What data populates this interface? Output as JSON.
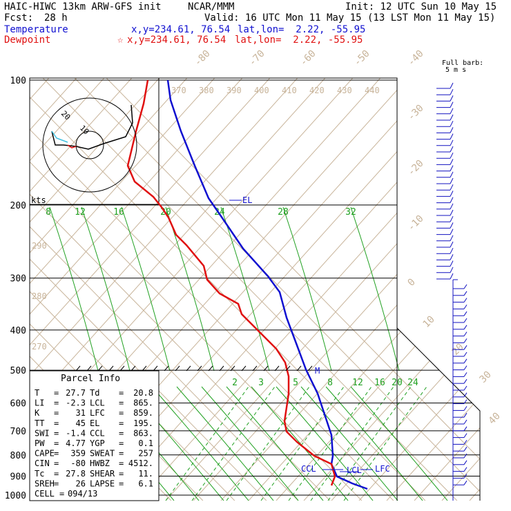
{
  "header": {
    "model": "HAIC-HIWC 13km ARW-GFS init",
    "org": "NCAR/MMM",
    "init": "Init: 12 UTC Sun 10 May 15",
    "fcst_label": "Fcst:",
    "fcst_value": "28 h",
    "valid": "Valid: 16 UTC Mon 11 May 15 (13 LST Mon 11 May 15)",
    "temperature_label": "Temperature",
    "dewpoint_label": "Dewpoint",
    "temp_xy": "x,y=234.61, 76.54",
    "temp_latlon": "lat,lon=  2.22, -55.95",
    "dew_xy": "x,y=234.61, 76.54",
    "dew_latlon": "lat,lon=  2.22, -55.95",
    "barb_title": "Full barb:",
    "barb_unit": "5 m s"
  },
  "colors": {
    "temperature": "#1010d0",
    "dewpoint": "#e01010",
    "isotherm": "#c8b49a",
    "mixing_ratio": "#20a020",
    "wind": "#1010c0",
    "hodo_black": "#000000",
    "hodo_cyan": "#40c0e0"
  },
  "chart_data": {
    "type": "line",
    "pressure_levels": [
      100,
      200,
      300,
      400,
      500,
      600,
      700,
      800,
      900,
      1000
    ],
    "pressure_labels": [
      "100",
      "200",
      "300",
      "400",
      "500",
      "600",
      "700",
      "800",
      "900",
      "1000"
    ],
    "isotherm_labels": [
      "-80",
      "-70",
      "-60",
      "-50",
      "-40",
      "-30",
      "-20",
      "-10",
      "0",
      "10",
      "20",
      "30",
      "40"
    ],
    "theta_labels_top": [
      "370",
      "380",
      "390",
      "400",
      "410",
      "420",
      "430",
      "440"
    ],
    "theta_labels_left": [
      "290",
      "280",
      "270"
    ],
    "mixing_ratio_upper": [
      "8",
      "12",
      "16",
      "20",
      "24",
      "28",
      "32"
    ],
    "mixing_ratio_lower": [
      "2",
      "3",
      "5",
      "8",
      "12",
      "16",
      "20",
      "24"
    ],
    "series": [
      {
        "name": "Temperature",
        "points": [
          [
            -55,
            105
          ],
          [
            -54,
            140
          ],
          [
            -50,
            200
          ],
          [
            -43,
            300
          ],
          [
            -24,
            420
          ],
          [
            -15,
            490
          ],
          [
            -8,
            560
          ],
          [
            -1,
            700
          ],
          [
            4,
            800
          ],
          [
            12,
            880
          ],
          [
            20,
            960
          ]
        ]
      },
      {
        "name": "Dewpoint",
        "points": [
          [
            -100,
            105
          ],
          [
            -98,
            140
          ],
          [
            -95,
            165
          ],
          [
            -82,
            200
          ],
          [
            -75,
            250
          ],
          [
            -72,
            300
          ],
          [
            -60,
            350
          ],
          [
            -52,
            400
          ],
          [
            -20,
            520
          ],
          [
            -10,
            560
          ],
          [
            -8,
            600
          ],
          [
            -12,
            700
          ],
          [
            2,
            790
          ],
          [
            12,
            880
          ],
          [
            12,
            920
          ]
        ]
      }
    ],
    "annotations": [
      "EL",
      "M",
      "CCL",
      "LCL",
      "LFC"
    ],
    "hodograph": {
      "ring_labels": [
        "20",
        "10"
      ],
      "units": "kts"
    },
    "parcel_info": {
      "title": "Parcel Info",
      "rows": [
        {
          "l1": "T",
          "v1": "27.7",
          "l2": "Td",
          "v2": "20.8"
        },
        {
          "l1": "LI",
          "v1": "-2.3",
          "l2": "LCL",
          "v2": "865."
        },
        {
          "l1": "K",
          "v1": "31",
          "l2": "LFC",
          "v2": "859."
        },
        {
          "l1": "TT",
          "v1": "45",
          "l2": "EL",
          "v2": "195."
        },
        {
          "l1": "SWI",
          "v1": "-1.4",
          "l2": "CCL",
          "v2": "863."
        },
        {
          "l1": "PW",
          "v1": "4.77",
          "l2": "YGP",
          "v2": "0.1"
        },
        {
          "l1": "CAPE",
          "v1": "359",
          "l2": "SWEAT",
          "v2": "257"
        },
        {
          "l1": "CIN",
          "v1": "-80",
          "l2": "HWBZ",
          "v2": "4512."
        },
        {
          "l1": "Tc",
          "v1": "27.8",
          "l2": "SHEAR",
          "v2": "11."
        },
        {
          "l1": "SREH",
          "v1": "26",
          "l2": "LAPSE",
          "v2": "6.1"
        }
      ],
      "cell_label": "CELL",
      "cell_value": "094/13"
    }
  }
}
